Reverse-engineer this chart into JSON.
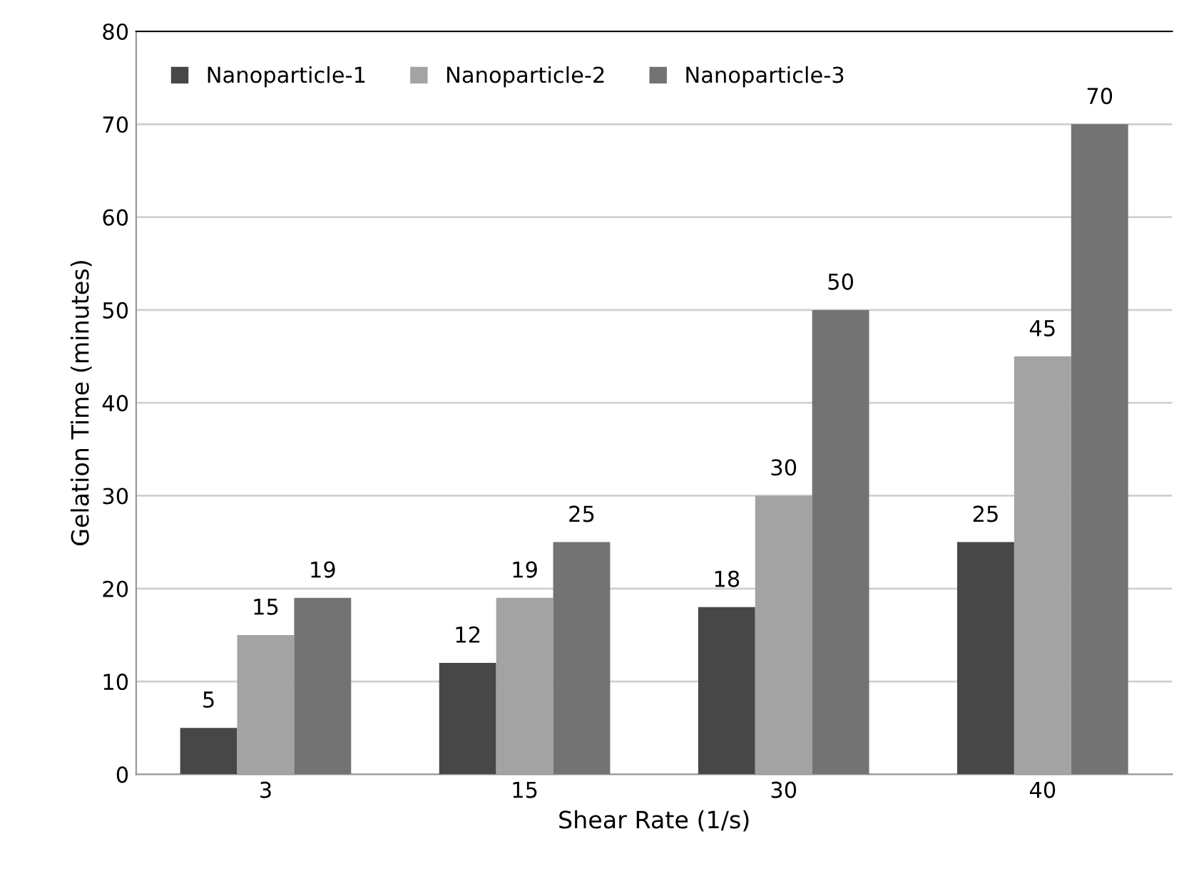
{
  "chart_data": {
    "type": "bar",
    "xlabel": "Shear Rate (1/s)",
    "ylabel": "Gelation Time (minutes)",
    "categories": [
      "3",
      "15",
      "30",
      "40"
    ],
    "series": [
      {
        "name": "Nanoparticle-1",
        "color": "#474747",
        "values": [
          5,
          12,
          18,
          25
        ]
      },
      {
        "name": "Nanoparticle-2",
        "color": "#a3a3a3",
        "values": [
          15,
          19,
          30,
          45
        ]
      },
      {
        "name": "Nanoparticle-3",
        "color": "#737373",
        "values": [
          19,
          25,
          50,
          70
        ]
      }
    ],
    "ylim": [
      0,
      80
    ],
    "yticks": [
      0,
      10,
      20,
      30,
      40,
      50,
      60,
      70,
      80
    ],
    "grid": "y",
    "legend": "top left",
    "data_labels": true
  }
}
